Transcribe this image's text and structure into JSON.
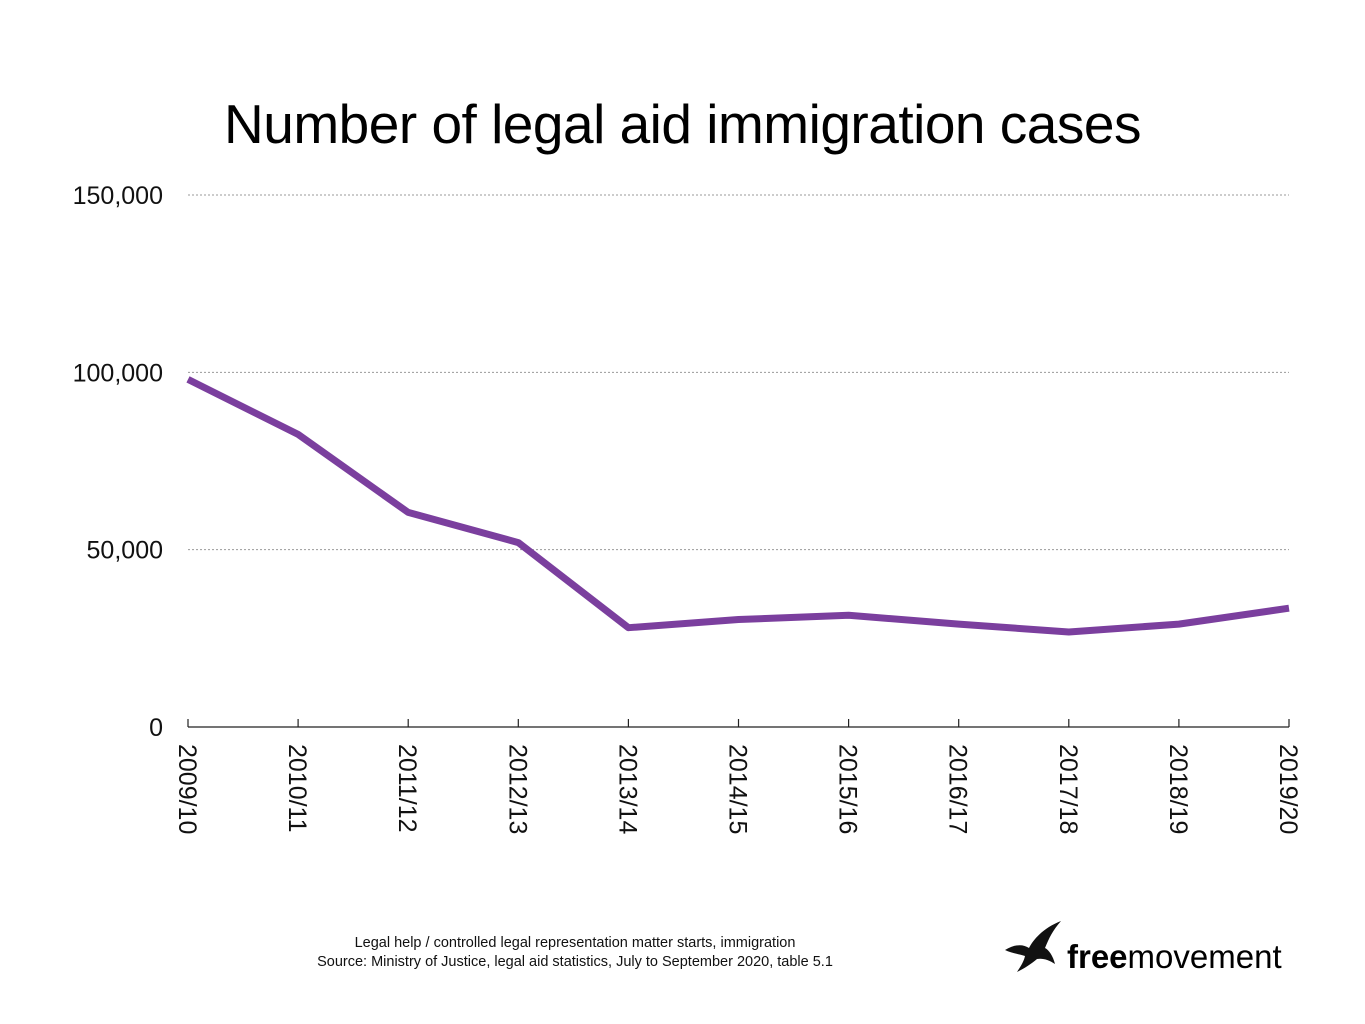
{
  "chart_data": {
    "type": "line",
    "title": "Number of legal aid immigration cases",
    "categories": [
      "2009/10",
      "2010/11",
      "2011/12",
      "2012/13",
      "2013/14",
      "2014/15",
      "2015/16",
      "2016/17",
      "2017/18",
      "2018/19",
      "2019/20"
    ],
    "series": [
      {
        "values": [
          98000,
          82500,
          60500,
          52000,
          28000,
          30300,
          31500,
          29000,
          26800,
          29000,
          33500
        ]
      }
    ],
    "ylim": [
      0,
      150000
    ],
    "yticks": [
      0,
      50000,
      100000,
      150000
    ],
    "ytick_labels": [
      "0",
      "50,000",
      "100,000",
      "150,000"
    ],
    "grid": true,
    "line_color": "#7b3f9e"
  },
  "footnote": {
    "line1": "Legal help / controlled legal representation matter starts, immigration",
    "line2": "Source: Ministry of Justice, legal aid statistics, July to September 2020, table 5.1"
  },
  "logo": {
    "free": "free",
    "movement": "movement",
    "icon": "bird-icon"
  }
}
